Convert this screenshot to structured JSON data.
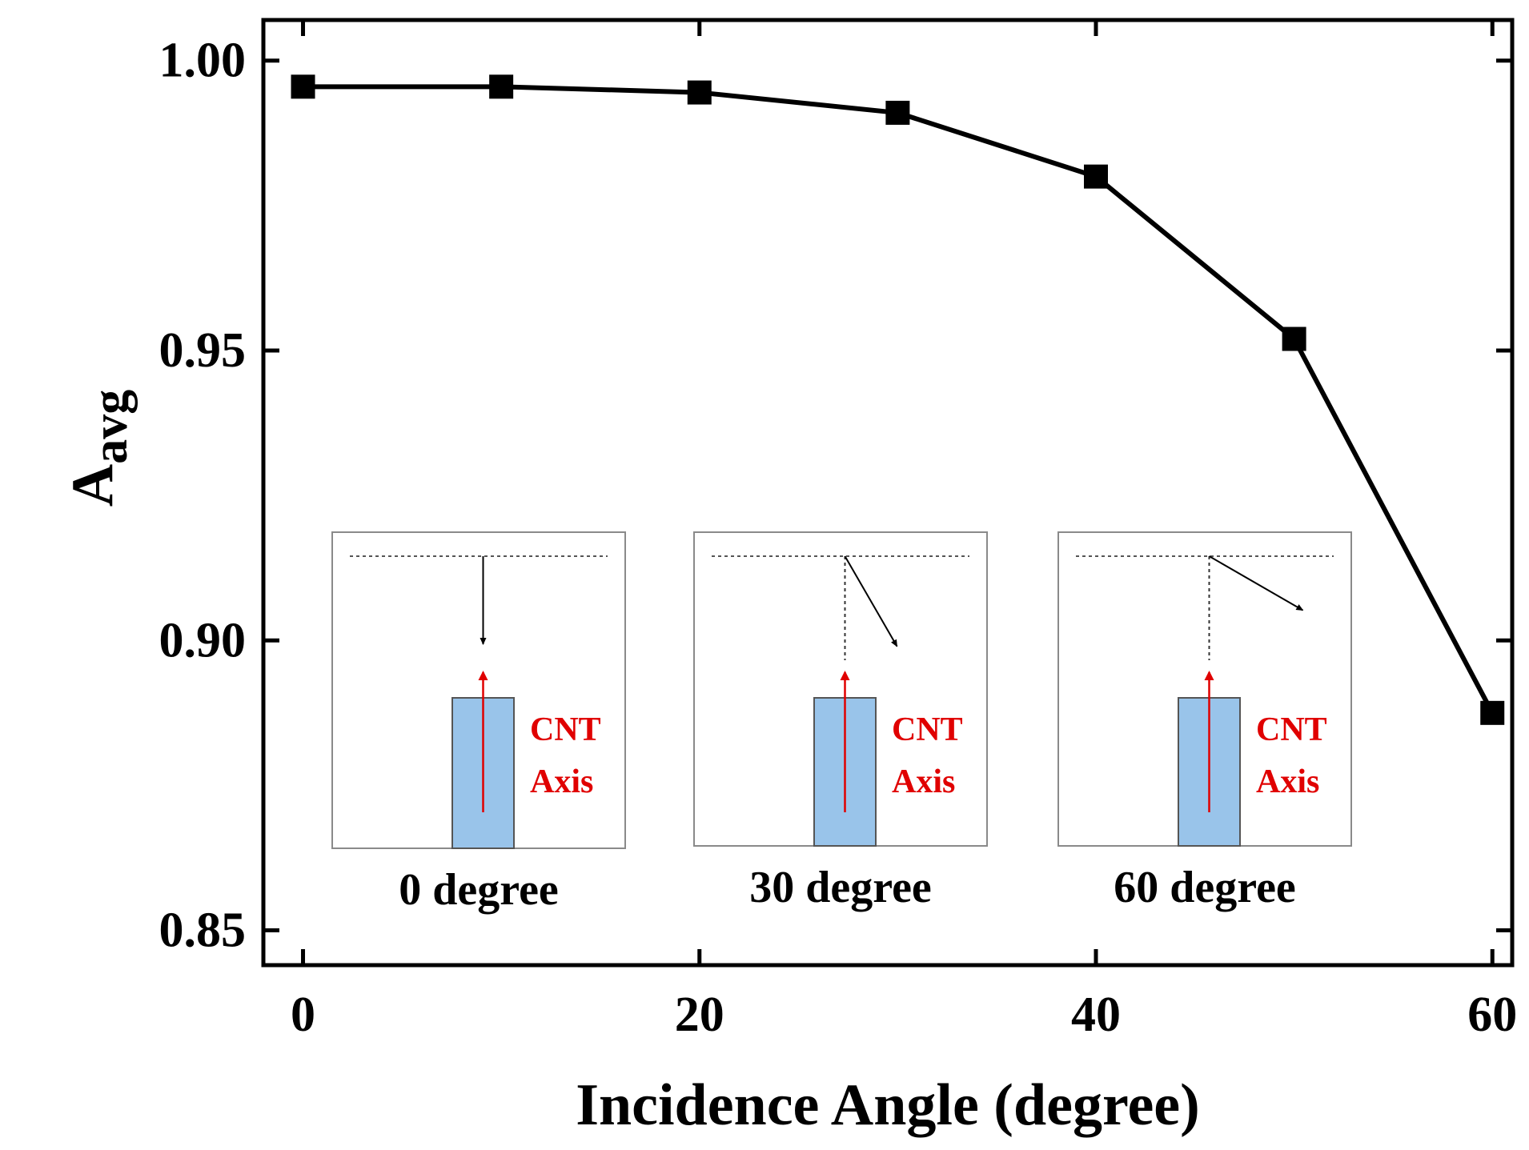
{
  "chart_data": {
    "type": "line",
    "title": "",
    "xlabel": "Incidence Angle (degree)",
    "ylabel": {
      "main": "A",
      "subscript": "avg"
    },
    "x": [
      0,
      10,
      20,
      30,
      40,
      50,
      60
    ],
    "series": [
      {
        "name": "A_avg",
        "values": [
          0.9955,
          0.9955,
          0.9945,
          0.991,
          0.98,
          0.952,
          0.8875
        ],
        "marker": "square",
        "color": "#000000"
      }
    ],
    "xlim": [
      -2,
      61
    ],
    "ylim": [
      0.844,
      1.007
    ],
    "xticks": [
      0,
      20,
      40,
      60
    ],
    "xtick_labels": [
      "0",
      "20",
      "40",
      "60"
    ],
    "yticks": [
      0.85,
      0.9,
      0.95,
      1.0
    ],
    "ytick_labels": [
      "0.85",
      "0.90",
      "0.95",
      "1.00"
    ],
    "grid": false,
    "insets": [
      {
        "angle": 0,
        "caption": "0 degree",
        "label_line1": "CNT",
        "label_line2": "Axis"
      },
      {
        "angle": 30,
        "caption": "30 degree",
        "label_line1": "CNT",
        "label_line2": "Axis"
      },
      {
        "angle": 60,
        "caption": "60 degree",
        "label_line1": "CNT",
        "label_line2": "Axis"
      }
    ],
    "colors": {
      "line": "#000000",
      "cnt_fill": "#99c4ea",
      "cnt_axis": "#e00000",
      "inset_border": "#8a8a8a"
    }
  }
}
